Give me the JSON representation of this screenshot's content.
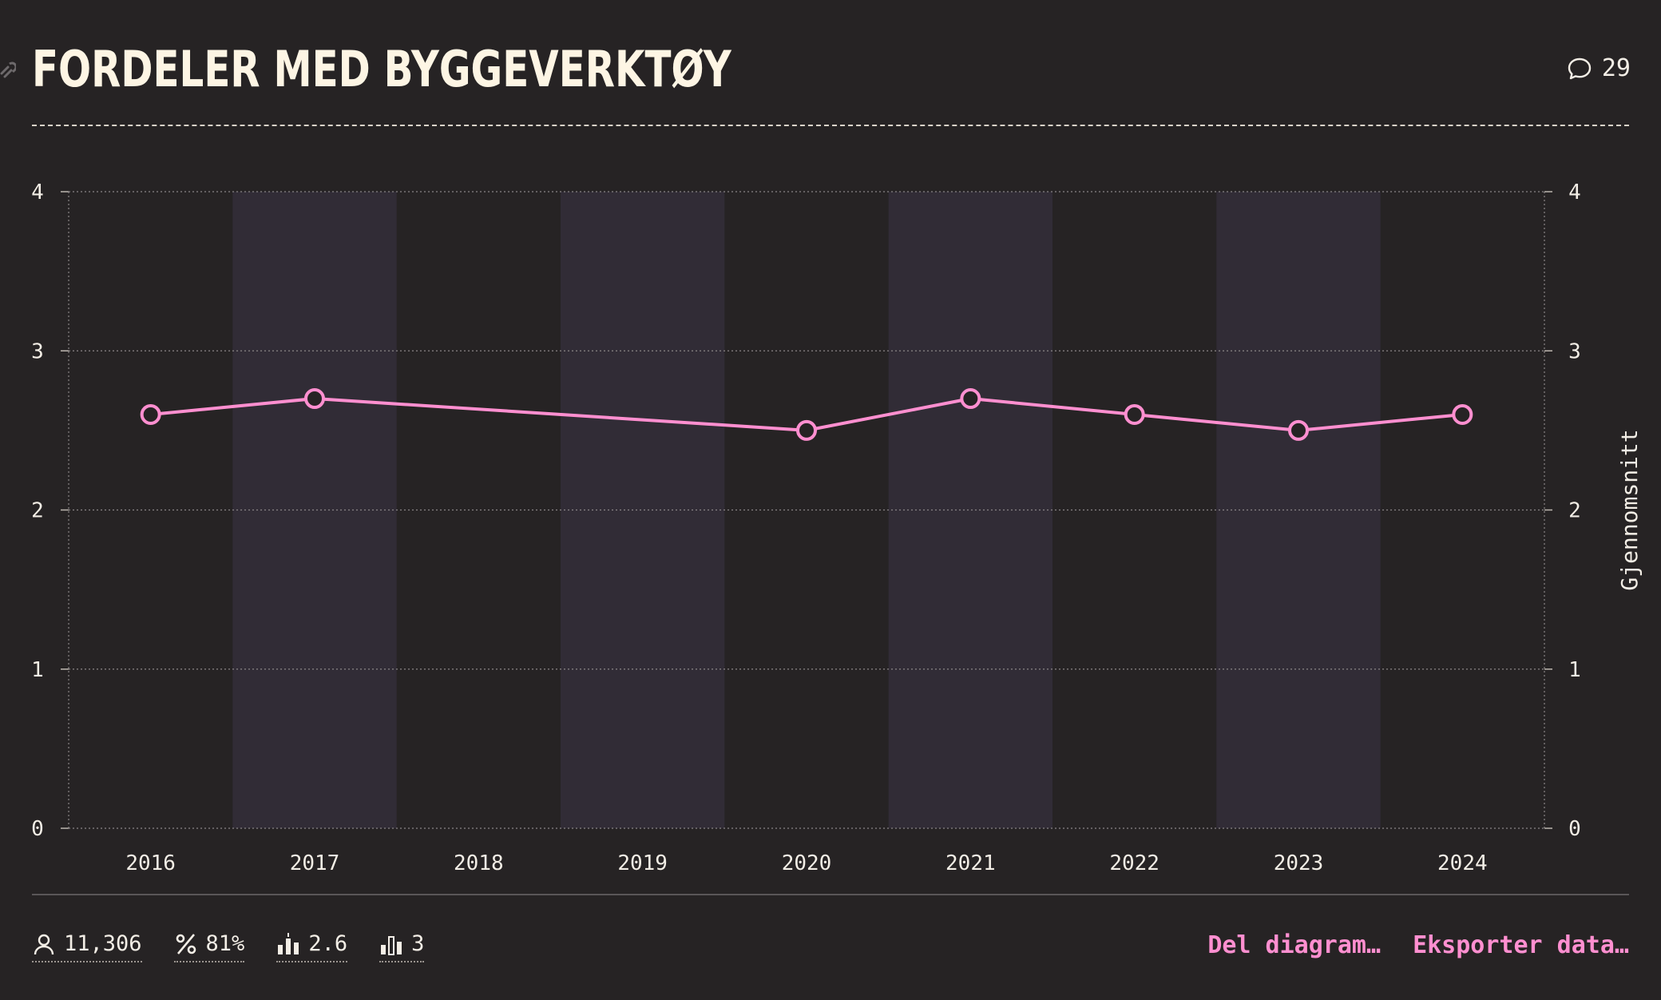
{
  "header": {
    "title": "FORDELER MED BYGGEVERKTØY",
    "comment_count": "29"
  },
  "icons": {
    "link": "link-icon",
    "comment": "speech-bubble-icon",
    "respondents": "person-icon",
    "percent": "percent-icon",
    "average": "bar-average-icon",
    "median": "bar-median-icon"
  },
  "colors": {
    "background": "#262324",
    "band": "#312c36",
    "line": "#ff8fd0",
    "title": "#fdf5e4",
    "accent": "#ff8fd0"
  },
  "chart_data": {
    "type": "line",
    "title": "",
    "xlabel": "",
    "ylabel": "Gjennomsnitt",
    "x": [
      "2016",
      "2017",
      "2018",
      "2019",
      "2020",
      "2021",
      "2022",
      "2023",
      "2024"
    ],
    "series": [
      {
        "values": [
          2.6,
          2.7,
          null,
          null,
          2.5,
          2.7,
          2.6,
          2.5,
          2.6
        ]
      }
    ],
    "ylim": [
      0,
      4
    ],
    "yticks": [
      0,
      1,
      2,
      3,
      4
    ],
    "grid": true,
    "alternating_bands": [
      "2017",
      "2019",
      "2021",
      "2023"
    ]
  },
  "footer": {
    "stats": [
      {
        "icon": "person-icon",
        "value": "11,306"
      },
      {
        "icon": "percent-icon",
        "value": "81%"
      },
      {
        "icon": "bar-average-icon",
        "value": "2.6"
      },
      {
        "icon": "bar-median-icon",
        "value": "3"
      }
    ],
    "share_label": "Del diagram…",
    "export_label": "Eksporter data…"
  }
}
